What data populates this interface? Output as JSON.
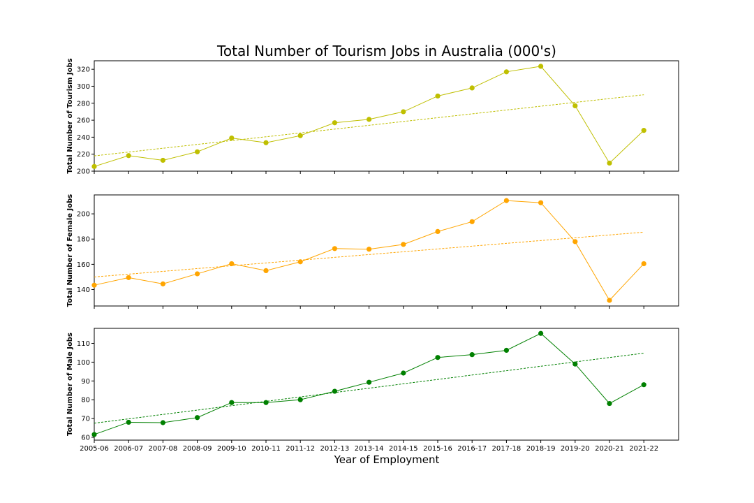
{
  "chart_data": {
    "type": "line",
    "title": "Total Number of Tourism Jobs in Australia (000's)",
    "xlabel": "Year of Employment",
    "categories": [
      "2005-06",
      "2006-07",
      "2007-08",
      "2008-09",
      "2009-10",
      "2010-11",
      "2011-12",
      "2012-13",
      "2013-14",
      "2014-15",
      "2015-16",
      "2016-17",
      "2017-18",
      "2018-19",
      "2019-20",
      "2020-21",
      "2021-22"
    ],
    "panels": [
      {
        "ylabel": "Total Number of Tourism Jobs",
        "color": "#bfbf00",
        "ylim": [
          200,
          330
        ],
        "yticks": [
          200,
          220,
          240,
          260,
          280,
          300,
          320
        ],
        "values": [
          205.5,
          218.3,
          212.8,
          222.8,
          239.0,
          233.5,
          241.8,
          257.0,
          261.0,
          270.0,
          288.5,
          298.0,
          317.0,
          323.5,
          277.0,
          209.5,
          248.0
        ],
        "trend": [
          218.0,
          290.0
        ]
      },
      {
        "ylabel": "Total Number of Female Jobs",
        "color": "#ffa500",
        "ylim": [
          127,
          215
        ],
        "yticks": [
          140,
          160,
          180,
          200
        ],
        "values": [
          143.5,
          149.5,
          144.5,
          152.5,
          160.5,
          155.0,
          162.0,
          172.5,
          172.0,
          175.8,
          186.0,
          193.8,
          210.5,
          208.8,
          178.0,
          131.5,
          160.5
        ],
        "trend": [
          150.0,
          185.5
        ]
      },
      {
        "ylabel": "Total Number of Male Jobs",
        "color": "#008000",
        "ylim": [
          58.5,
          118
        ],
        "yticks": [
          60,
          70,
          80,
          90,
          100,
          110
        ],
        "values": [
          61.5,
          68.0,
          67.8,
          70.5,
          78.5,
          78.5,
          80.0,
          84.5,
          89.3,
          94.2,
          102.5,
          104.0,
          106.3,
          115.3,
          99.0,
          78.0,
          88.0
        ],
        "trend": [
          67.5,
          104.8
        ]
      }
    ],
    "grid": false,
    "legend": "none"
  }
}
